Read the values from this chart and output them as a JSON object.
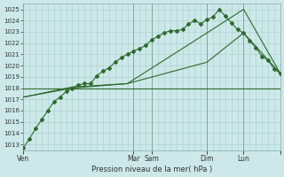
{
  "xlabel": "Pression niveau de la mer( hPa )",
  "bg_color": "#cce8e8",
  "grid_color": "#aacccc",
  "line_color": "#2d6a2d",
  "ylim": [
    1012.5,
    1025.5
  ],
  "yticks": [
    1013,
    1014,
    1015,
    1016,
    1017,
    1018,
    1019,
    1020,
    1021,
    1022,
    1023,
    1024,
    1025
  ],
  "xlim": [
    0,
    168
  ],
  "day_positions": [
    0,
    72,
    84,
    120,
    144,
    168
  ],
  "day_labels": [
    "Ven",
    "Mar",
    "Sam",
    "Dim",
    "Lun",
    ""
  ],
  "vline_positions": [
    0,
    72,
    84,
    120,
    144,
    168
  ],
  "line1_x": [
    0,
    4,
    8,
    12,
    16,
    20,
    24,
    28,
    32,
    36,
    40,
    44,
    48,
    52,
    56,
    60,
    64,
    68,
    72,
    76,
    80,
    84,
    88,
    92,
    96,
    100,
    104,
    108,
    112,
    116,
    120,
    124,
    128,
    132,
    136,
    140,
    144,
    148,
    152,
    156,
    160,
    164,
    168
  ],
  "line1_y": [
    1012.7,
    1013.5,
    1014.4,
    1015.2,
    1016.0,
    1016.8,
    1017.2,
    1017.7,
    1018.0,
    1018.3,
    1018.4,
    1018.4,
    1019.1,
    1019.5,
    1019.8,
    1020.3,
    1020.7,
    1021.0,
    1021.3,
    1021.5,
    1021.8,
    1022.3,
    1022.6,
    1022.9,
    1023.1,
    1023.1,
    1023.2,
    1023.7,
    1024.0,
    1023.7,
    1024.1,
    1024.3,
    1025.0,
    1024.4,
    1023.8,
    1023.2,
    1022.9,
    1022.2,
    1021.6,
    1020.8,
    1020.5,
    1019.7,
    1019.3
  ],
  "line2_x": [
    0,
    32,
    68,
    120,
    144,
    168
  ],
  "line2_y": [
    1017.2,
    1018.1,
    1018.4,
    1022.9,
    1025.0,
    1019.3
  ],
  "line3_x": [
    0,
    32,
    68,
    120,
    144,
    168
  ],
  "line3_y": [
    1017.2,
    1018.0,
    1018.4,
    1020.3,
    1022.9,
    1019.3
  ],
  "line4_x": [
    0,
    168
  ],
  "line4_y": [
    1018.0,
    1018.0
  ],
  "figsize": [
    3.2,
    2.0
  ],
  "dpi": 100
}
